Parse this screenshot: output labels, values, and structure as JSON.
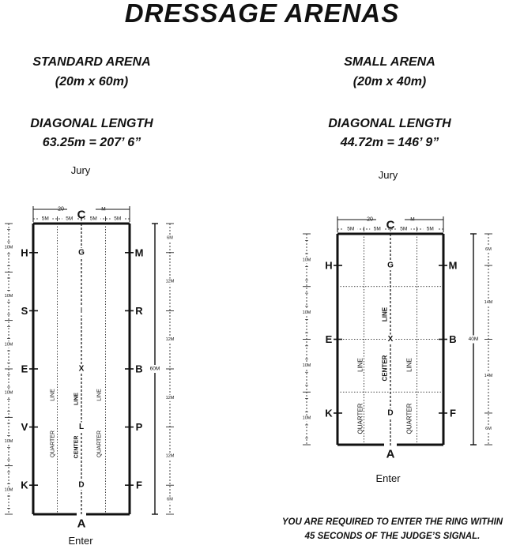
{
  "title": "DRESSAGE ARENAS",
  "standard": {
    "name": "STANDARD ARENA",
    "size": "(20m x 60m)",
    "diag_label": "DIAGONAL LENGTH",
    "diag_value": "63.25m = 207’ 6”",
    "jury": "Jury",
    "enter": "Enter",
    "width_label": "20",
    "length_label": "60M",
    "seg_top": [
      "5M",
      "5M",
      "5M",
      "5M"
    ],
    "left_dims": [
      "10M",
      "10M",
      "10M",
      "10M",
      "10M",
      "10M"
    ],
    "right_dims": [
      "6M",
      "12M",
      "12M",
      "12M",
      "12M",
      "6M"
    ],
    "letters": {
      "top": "C",
      "bottom": "A",
      "corner_tr": "M",
      "left": [
        "H",
        "S",
        "E",
        "V",
        "K"
      ],
      "right": [
        "M",
        "R",
        "B",
        "P",
        "F"
      ],
      "center": [
        "G",
        "I",
        "X",
        "L",
        "D"
      ]
    },
    "center_line": "CENTER LINE",
    "quarter_line": "QUARTER LINE"
  },
  "small": {
    "name": "SMALL ARENA",
    "size": "(20m x 40m)",
    "diag_label": "DIAGONAL LENGTH",
    "diag_value": "44.72m = 146’ 9”",
    "jury": "Jury",
    "enter": "Enter",
    "width_label": "20",
    "length_label": "40M",
    "seg_top": [
      "5M",
      "5M",
      "5M",
      "5M"
    ],
    "left_dims": [
      "10M",
      "10M",
      "10M",
      "10M"
    ],
    "right_dims": [
      "6M",
      "14M",
      "14M",
      "6M"
    ],
    "letters": {
      "top": "C",
      "bottom": "A",
      "corner_tr": "M",
      "left": [
        "H",
        "E",
        "K"
      ],
      "right": [
        "M",
        "B",
        "F"
      ],
      "center": [
        "G",
        "X",
        "D"
      ]
    },
    "center_line": "CENTER LINE",
    "quarter_line": "QUARTER LINE"
  },
  "note_line1": "YOU ARE REQUIRED TO ENTER THE RING WITHIN",
  "note_line2": "45 SECONDS OF THE JUDGE’S SIGNAL."
}
